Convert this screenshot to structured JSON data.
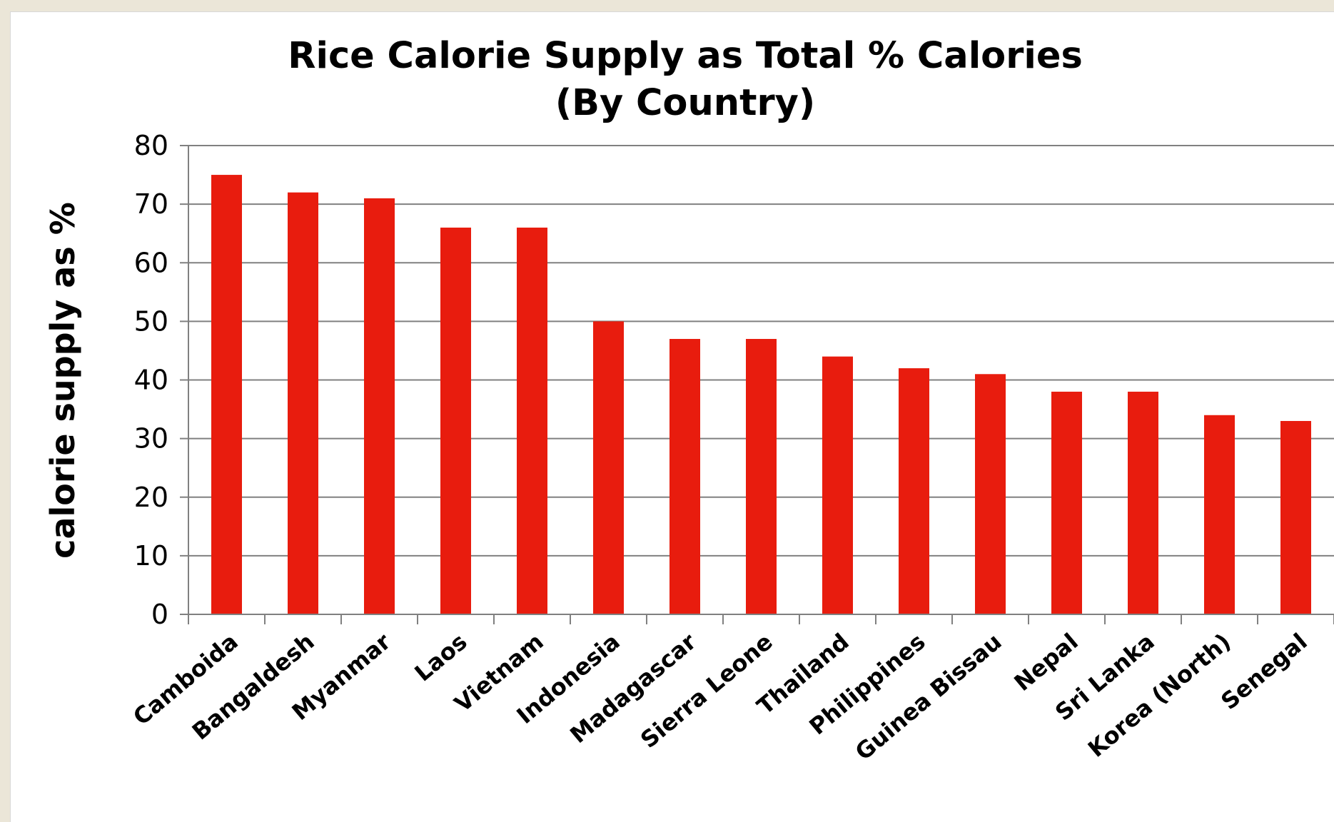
{
  "colors": {
    "page_background": "#ebe6d8",
    "plot_background": "#ffffff",
    "bar": "#e81c0e",
    "gridline": "#808080",
    "axis": "#808080"
  },
  "chart_data": {
    "type": "bar",
    "title": [
      "Rice Calorie Supply as Total % Calories",
      "(By Country)"
    ],
    "xlabel": "",
    "ylabel": "calorie supply as %",
    "ylim": [
      0,
      80
    ],
    "yticks": [
      "0",
      "10",
      "20",
      "30",
      "40",
      "50",
      "60",
      "70",
      "80"
    ],
    "grid": true,
    "legend": "none",
    "categories": [
      "Camboida",
      "Bangaldesh",
      "Myanmar",
      "Laos",
      "Vietnam",
      "Indonesia",
      "Madagascar",
      "Sierra Leone",
      "Thailand",
      "Philippines",
      "Guinea Bissau",
      "Nepal",
      "Sri Lanka",
      "Korea (North)",
      "Senegal"
    ],
    "values": [
      75,
      72,
      71,
      66,
      66,
      50,
      47,
      47,
      44,
      42,
      41,
      38,
      38,
      34,
      33
    ]
  }
}
